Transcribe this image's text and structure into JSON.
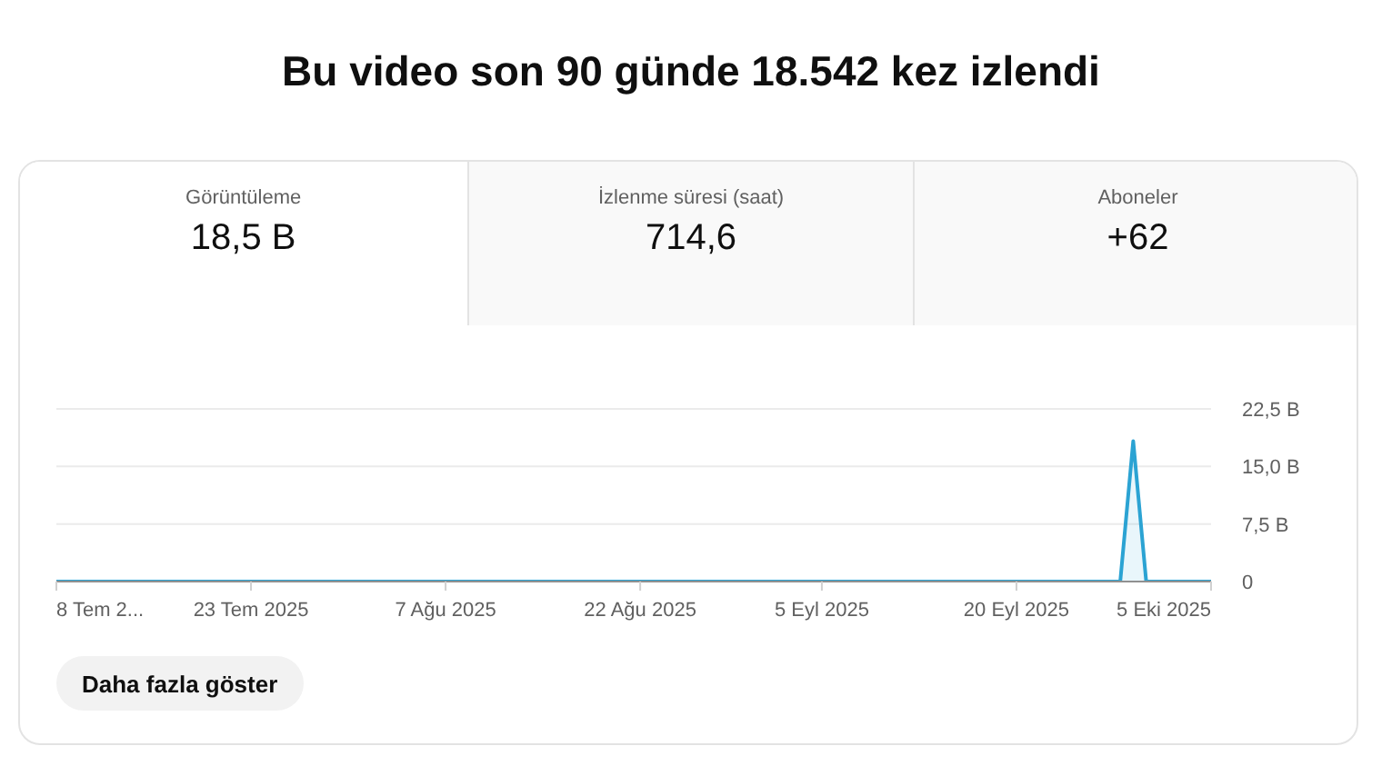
{
  "chart_data": {
    "type": "area",
    "title": "Bu video son 90 günde 18.542 kez izlendi",
    "annotations": [
      "Görüntüleme",
      "18,5 B",
      "İzlenme süresi (saat)",
      "714,6",
      "Aboneler",
      "+62",
      "Daha fazla göster"
    ],
    "x": [
      "2025-07-08",
      "2025-09-28",
      "2025-09-29",
      "2025-09-30",
      "2025-10-05"
    ],
    "values": [
      0,
      0,
      18.3,
      0,
      0
    ],
    "color": "#2ba3d3",
    "xlim": [
      "2025-07-08",
      "2025-10-05"
    ],
    "xticks": [
      {
        "value": "2025-07-08",
        "label": "8 Tem 2..."
      },
      {
        "value": "2025-07-23",
        "label": "23 Tem 2025"
      },
      {
        "value": "2025-08-07",
        "label": "7 Ağu 2025"
      },
      {
        "value": "2025-08-22",
        "label": "22 Ağu 2025"
      },
      {
        "value": "2025-09-05",
        "label": "5 Eyl 2025"
      },
      {
        "value": "2025-09-20",
        "label": "20 Eyl 2025"
      },
      {
        "value": "2025-10-05",
        "label": "5 Eki 2025"
      }
    ],
    "ylim": [
      0,
      22.5
    ],
    "yticks": [
      0,
      {
        "value": 7.5,
        "label": "7,5 B"
      },
      {
        "value": 15,
        "label": "15,0 B"
      },
      {
        "value": 22.5,
        "label": "22,5 B"
      }
    ],
    "grid": "y"
  }
}
